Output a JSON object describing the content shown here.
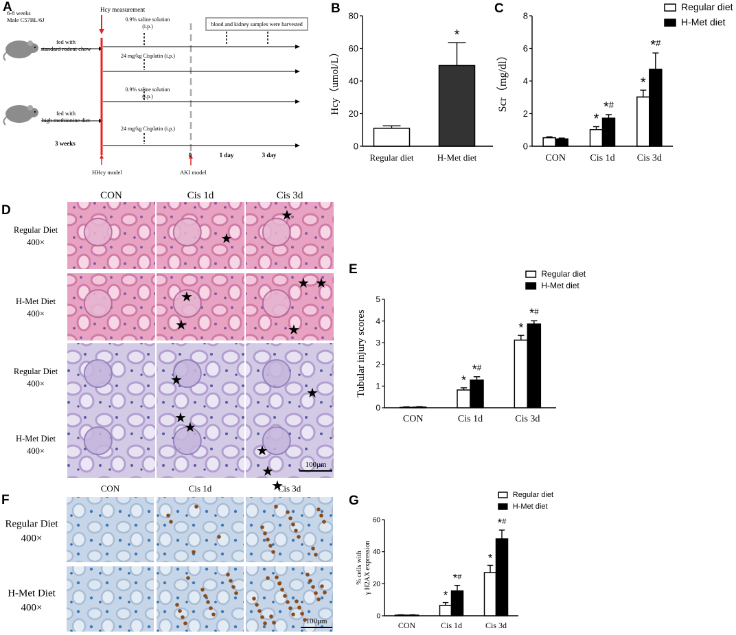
{
  "panels": {
    "A": "A",
    "B": "B",
    "C": "C",
    "D": "D",
    "E": "E",
    "F": "F",
    "G": "G"
  },
  "colors": {
    "regular_fill": "#ffffff",
    "hmet_fill": "#000000",
    "panelB_bar2": "#333333",
    "timeline_red": "#e8231f",
    "dashed_grey": "#aaaaaa",
    "he_pink": "#eaa0c0",
    "pas_lilac": "#cfc8e4",
    "ihc_blue": "#b8cde3"
  },
  "timeline": {
    "mouse_top_label": "6-8 weeks\nMale C57BL/6J",
    "fed_standard": "fed with\nstandard rodent chow",
    "fed_hmet": "fed with\nhigh methionine diet",
    "hcy_measurement": "Hcy measurement",
    "saline1": "0.9% saline solution\n(i.p.)",
    "cisplatin1": "24 mg/kg Cisplatin (i.p.)",
    "saline2": "0.9% saline solution\n(i.p.)",
    "cisplatin2": "24 mg/kg Cisplatin (i.p.)",
    "harvest": "blood and kidney samples were harvested",
    "three_weeks": "3 weeks",
    "hhcy_model": "HHcy model",
    "aki_model": "AKI model",
    "day0": "0",
    "day1": "1 day",
    "day3": "3 day",
    "icons": [
      "mouse-icon",
      "mouse-icon"
    ]
  },
  "histology": {
    "col_labels": [
      "CON",
      "Cis 1d",
      "Cis 3d"
    ],
    "d_rows": [
      {
        "line1": "Regular Diet",
        "line2": "400×"
      },
      {
        "line1": "H-Met Diet",
        "line2": "400×"
      },
      {
        "line1": "Regular Diet",
        "line2": "400×"
      },
      {
        "line1": "H-Met Diet",
        "line2": "400×"
      }
    ],
    "f_col_labels": [
      "CON",
      "Cis 1d",
      "Cis 3d"
    ],
    "f_rows": [
      {
        "line1": "Regular Diet",
        "line2": "400×"
      },
      {
        "line1": "H-Met Diet",
        "line2": "400×"
      }
    ],
    "scale_d": "100μm",
    "scale_f": "100μm",
    "star_glyph": "★"
  },
  "chart_data": [
    {
      "id": "B",
      "type": "bar",
      "categories": [
        "Regular diet",
        "H-Met diet"
      ],
      "values": [
        11,
        49.5
      ],
      "errors": [
        1.5,
        14
      ],
      "ylabel": "Hcy（umol/L）",
      "ylim": [
        0,
        80
      ],
      "yticks": [
        0,
        20,
        40,
        60,
        80
      ],
      "annotations": [
        "",
        "*"
      ]
    },
    {
      "id": "C",
      "type": "bar",
      "categories": [
        "CON",
        "Cis 1d",
        "Cis 3d"
      ],
      "series": [
        {
          "name": "Regular diet",
          "values": [
            0.52,
            1.02,
            3.02
          ],
          "errors": [
            0.06,
            0.18,
            0.42
          ],
          "annotations": [
            "",
            "*",
            "*"
          ]
        },
        {
          "name": "H-Met diet",
          "values": [
            0.45,
            1.72,
            4.72
          ],
          "errors": [
            0.05,
            0.22,
            1.0
          ],
          "annotations": [
            "",
            "*#",
            "*#"
          ]
        }
      ],
      "ylabel": "Scr（mg/dl）",
      "ylim": [
        0,
        8
      ],
      "yticks": [
        0,
        2,
        4,
        6,
        8
      ],
      "legend": "top-right"
    },
    {
      "id": "E",
      "type": "bar",
      "categories": [
        "CON",
        "Cis 1d",
        "Cis 3d"
      ],
      "series": [
        {
          "name": "Regular diet",
          "values": [
            0.02,
            0.82,
            3.12
          ],
          "errors": [
            0.02,
            0.1,
            0.22
          ],
          "annotations": [
            "",
            "*",
            "*"
          ]
        },
        {
          "name": "H-Met diet",
          "values": [
            0.03,
            1.28,
            3.86
          ],
          "errors": [
            0.02,
            0.15,
            0.15
          ],
          "annotations": [
            "",
            "*#",
            "*#"
          ]
        }
      ],
      "ylabel": "Tubular injury scores",
      "ylim": [
        0,
        5
      ],
      "yticks": [
        0,
        1,
        2,
        3,
        4,
        5
      ],
      "legend": "top-right"
    },
    {
      "id": "G",
      "type": "bar",
      "categories": [
        "CON",
        "Cis 1d",
        "Cis 3d"
      ],
      "series": [
        {
          "name": "Regular diet",
          "values": [
            0.4,
            6.5,
            27
          ],
          "errors": [
            0.2,
            1.8,
            4.5
          ],
          "annotations": [
            "",
            "*",
            "*"
          ]
        },
        {
          "name": "H-Met diet",
          "values": [
            0.4,
            15.5,
            48
          ],
          "errors": [
            0.2,
            3.5,
            5.5
          ],
          "annotations": [
            "",
            "*#",
            "*#"
          ]
        }
      ],
      "ylabel_lines": [
        "% cells with",
        "γ H2AX expression"
      ],
      "ylim": [
        0,
        60
      ],
      "yticks": [
        0,
        20,
        40,
        60
      ],
      "legend": "top-right"
    }
  ]
}
